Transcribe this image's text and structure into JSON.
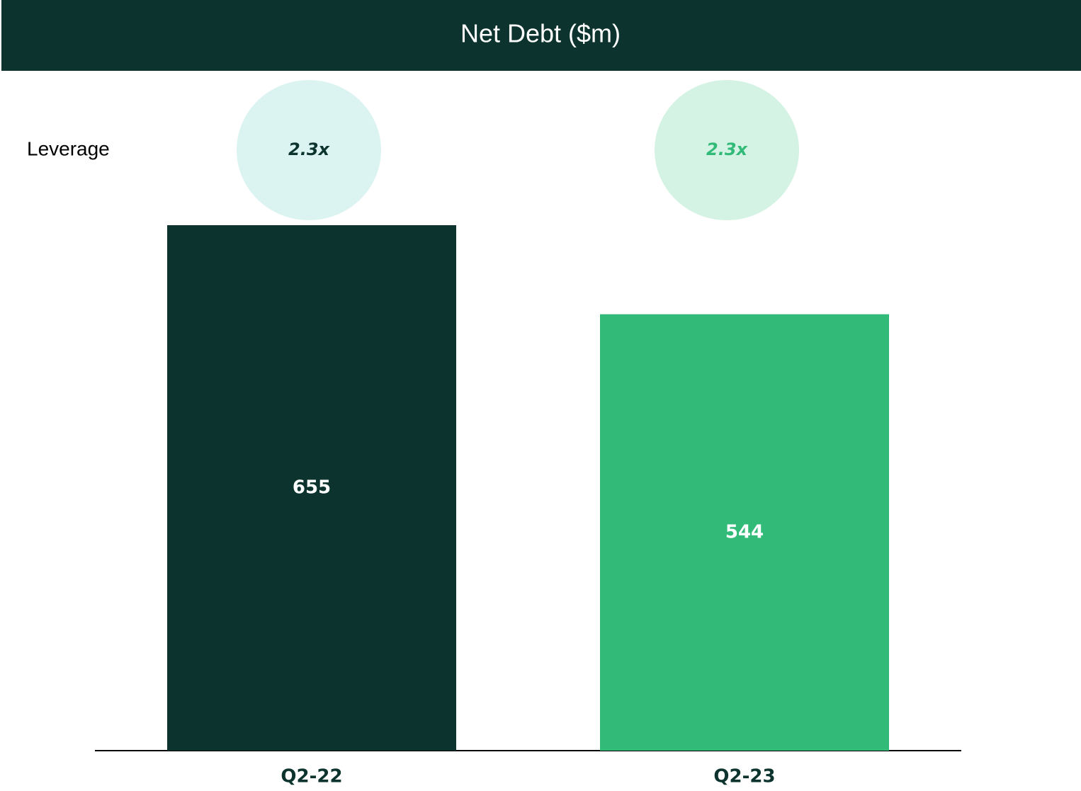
{
  "chart_data": {
    "type": "bar",
    "title": "Net Debt ($m)",
    "categories": [
      "Q2-22",
      "Q2-23"
    ],
    "values": [
      655,
      544
    ],
    "colors": [
      "#0c332d",
      "#32bb78"
    ],
    "leverage": {
      "label": "Leverage",
      "values": [
        2.3,
        2.3
      ],
      "value_labels": [
        "2.3x",
        "2.3x"
      ],
      "circle_colors": [
        "#dcf4f1",
        "#d4f3e4"
      ]
    }
  }
}
